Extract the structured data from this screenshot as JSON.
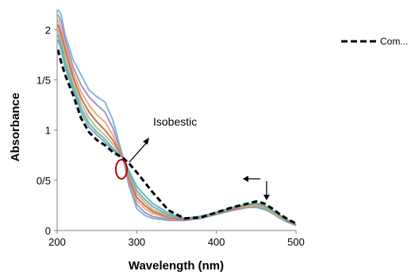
{
  "chart_data": {
    "type": "line",
    "xlabel": "Wavelength (nm)",
    "ylabel": "Absorbance",
    "xlim": [
      200,
      500
    ],
    "ylim": [
      0,
      2.2
    ],
    "x_ticks": [
      200,
      300,
      400,
      500
    ],
    "x_tick_labels": [
      "200",
      "300",
      "400",
      "500"
    ],
    "y_ticks": [
      0,
      0.5,
      1,
      1.5,
      2
    ],
    "y_tick_labels": [
      "0",
      "0/5",
      "1",
      "1/5",
      "2"
    ],
    "grid": false,
    "legend": {
      "placement": "top-right",
      "entries": [
        {
          "label": "Com...",
          "style": "dashed",
          "color": "#000000"
        }
      ]
    },
    "annotations": [
      {
        "text": "Isobestic",
        "x": 283,
        "y": 0.72
      }
    ],
    "x": [
      201,
      205,
      210,
      220,
      230,
      240,
      250,
      260,
      270,
      283,
      290,
      300,
      310,
      320,
      340,
      360,
      380,
      400,
      420,
      440,
      450,
      460,
      470,
      480,
      490,
      500
    ],
    "series": [
      {
        "name": "Com...",
        "dashed": true,
        "color": "#000000",
        "values": [
          1.8,
          1.68,
          1.55,
          1.35,
          1.12,
          0.98,
          0.9,
          0.85,
          0.78,
          0.72,
          0.67,
          0.58,
          0.48,
          0.38,
          0.2,
          0.12,
          0.13,
          0.18,
          0.23,
          0.27,
          0.29,
          0.27,
          0.22,
          0.16,
          0.11,
          0.07
        ]
      },
      {
        "color": "#6fb1d6",
        "values": [
          2.2,
          2.15,
          1.95,
          1.7,
          1.55,
          1.4,
          1.33,
          1.28,
          1.1,
          0.72,
          0.45,
          0.22,
          0.15,
          0.12,
          0.1,
          0.1,
          0.12,
          0.16,
          0.2,
          0.23,
          0.23,
          0.21,
          0.17,
          0.12,
          0.08,
          0.05
        ]
      },
      {
        "color": "#9b86c7",
        "values": [
          2.15,
          2.08,
          1.9,
          1.63,
          1.45,
          1.33,
          1.25,
          1.18,
          1.02,
          0.72,
          0.48,
          0.26,
          0.18,
          0.14,
          0.11,
          0.1,
          0.12,
          0.16,
          0.2,
          0.23,
          0.24,
          0.22,
          0.18,
          0.13,
          0.09,
          0.05
        ]
      },
      {
        "color": "#f0a35e",
        "values": [
          2.1,
          2.0,
          1.85,
          1.58,
          1.38,
          1.25,
          1.15,
          1.08,
          0.95,
          0.72,
          0.5,
          0.3,
          0.22,
          0.17,
          0.12,
          0.11,
          0.13,
          0.17,
          0.21,
          0.24,
          0.25,
          0.23,
          0.18,
          0.13,
          0.09,
          0.05
        ]
      },
      {
        "color": "#c45a5a",
        "values": [
          2.05,
          1.95,
          1.8,
          1.53,
          1.32,
          1.18,
          1.08,
          1.0,
          0.9,
          0.72,
          0.52,
          0.33,
          0.25,
          0.19,
          0.13,
          0.11,
          0.13,
          0.17,
          0.21,
          0.25,
          0.26,
          0.24,
          0.19,
          0.14,
          0.09,
          0.06
        ]
      },
      {
        "color": "#a8c46a",
        "values": [
          2.0,
          1.9,
          1.74,
          1.48,
          1.27,
          1.12,
          1.02,
          0.95,
          0.86,
          0.72,
          0.55,
          0.37,
          0.28,
          0.21,
          0.14,
          0.12,
          0.13,
          0.17,
          0.22,
          0.25,
          0.26,
          0.24,
          0.19,
          0.14,
          0.1,
          0.06
        ]
      },
      {
        "color": "#7f97c9",
        "values": [
          1.95,
          1.85,
          1.68,
          1.44,
          1.22,
          1.07,
          0.98,
          0.91,
          0.82,
          0.72,
          0.57,
          0.4,
          0.31,
          0.24,
          0.15,
          0.12,
          0.14,
          0.18,
          0.22,
          0.26,
          0.27,
          0.25,
          0.2,
          0.15,
          0.1,
          0.06
        ]
      },
      {
        "color": "#4fb3a9",
        "values": [
          1.9,
          1.8,
          1.63,
          1.4,
          1.18,
          1.03,
          0.95,
          0.88,
          0.8,
          0.72,
          0.6,
          0.44,
          0.35,
          0.27,
          0.17,
          0.12,
          0.14,
          0.18,
          0.23,
          0.26,
          0.27,
          0.25,
          0.2,
          0.15,
          0.1,
          0.06
        ]
      }
    ]
  }
}
